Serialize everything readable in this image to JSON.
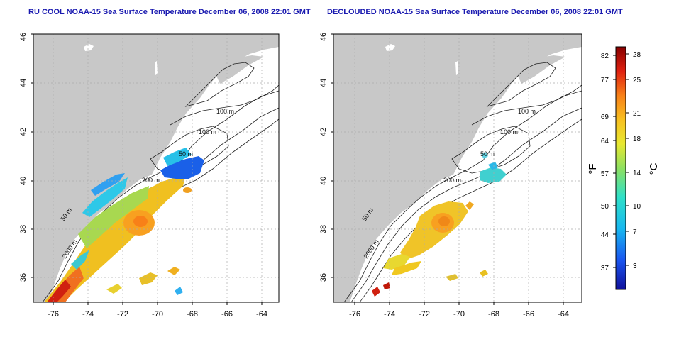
{
  "left_panel": {
    "title": "RU COOL NOAA-15 Sea Surface Temperature December 06, 2008 22:01 GMT",
    "x_ticks": [
      "-76",
      "-74",
      "-72",
      "-70",
      "-68",
      "-66",
      "-64"
    ],
    "y_ticks": [
      "36",
      "38",
      "40",
      "42",
      "44",
      "46"
    ],
    "contour_labels": [
      "100 m",
      "100 m",
      "50 m",
      "200 m",
      "50 m",
      "2000 m"
    ]
  },
  "right_panel": {
    "title": "DECLOUDED NOAA-15 Sea Surface Temperature December 06, 2008 22:01 GMT",
    "x_ticks": [
      "-76",
      "-74",
      "-72",
      "-70",
      "-68",
      "-66",
      "-64"
    ],
    "y_ticks": [
      "36",
      "38",
      "40",
      "42",
      "44",
      "46"
    ],
    "contour_labels": [
      "100 m",
      "100 m",
      "50 m",
      "200 m",
      "50 m",
      "2000 m"
    ]
  },
  "colorbar": {
    "f_label": "°F",
    "c_label": "°C",
    "f_ticks": [
      "82",
      "77",
      "69",
      "64",
      "57",
      "50",
      "44",
      "37"
    ],
    "c_ticks": [
      "28",
      "25",
      "21",
      "18",
      "14",
      "10",
      "7",
      "3"
    ]
  },
  "colors": {
    "land": "#c8c8c8",
    "title": "#1a1ab0",
    "grid": "#aaaaaa"
  }
}
